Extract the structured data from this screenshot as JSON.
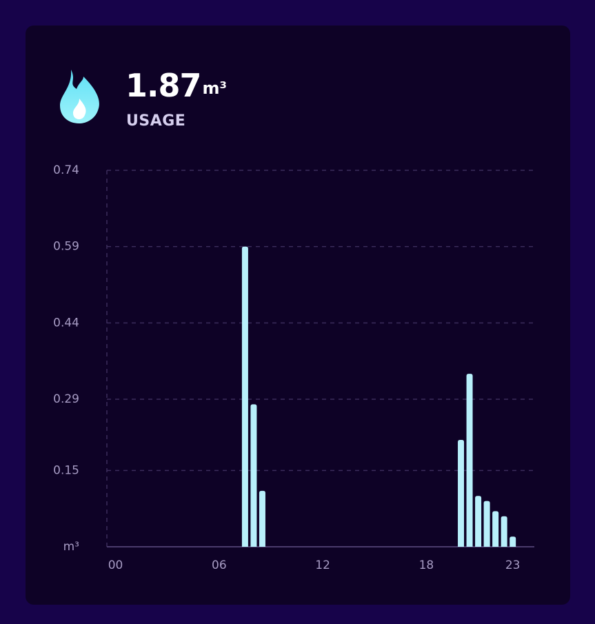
{
  "header": {
    "value": "1.87",
    "unit": "m³",
    "label": "USAGE"
  },
  "chart_data": {
    "type": "bar",
    "x": [
      7.5,
      8,
      8.5,
      20,
      20.5,
      21,
      21.5,
      22,
      22.5,
      23
    ],
    "values": [
      0.59,
      0.28,
      0.11,
      0.21,
      0.34,
      0.1,
      0.09,
      0.07,
      0.06,
      0.02
    ],
    "color": "#b8f0fb",
    "xlim": [
      -0.5,
      24.25
    ],
    "xticks": [
      {
        "value": 0,
        "label": "00"
      },
      {
        "value": 6,
        "label": "06"
      },
      12,
      18,
      23
    ],
    "ylim": [
      0,
      0.74
    ],
    "yticks": [
      {
        "value": 0,
        "label": "m³"
      },
      0.15,
      0.29,
      0.44,
      0.59,
      0.74
    ],
    "grid": true
  }
}
